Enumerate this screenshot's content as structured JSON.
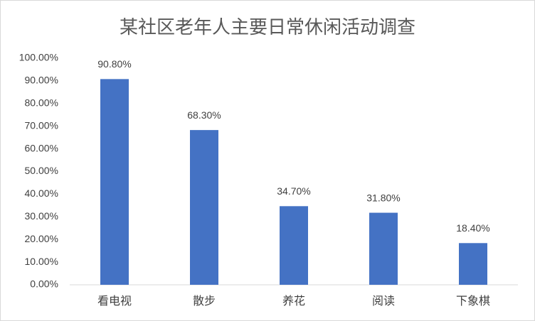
{
  "chart_data": {
    "type": "bar",
    "title": "某社区老年人主要日常休闲活动调查",
    "categories": [
      "看电视",
      "散步",
      "养花",
      "阅读",
      "下象棋"
    ],
    "values": [
      90.8,
      68.3,
      34.7,
      31.8,
      18.4
    ],
    "value_labels": [
      "90.80%",
      "68.30%",
      "34.70%",
      "31.80%",
      "18.40%"
    ],
    "color": "#4472c4",
    "ylim": [
      0,
      100
    ],
    "yticks": [
      {
        "value": 0,
        "label": "0.00%"
      },
      {
        "value": 10,
        "label": "10.00%"
      },
      {
        "value": 20,
        "label": "20.00%"
      },
      {
        "value": 30,
        "label": "30.00%"
      },
      {
        "value": 40,
        "label": "40.00%"
      },
      {
        "value": 50,
        "label": "50.00%"
      },
      {
        "value": 60,
        "label": "60.00%"
      },
      {
        "value": 70,
        "label": "70.00%"
      },
      {
        "value": 80,
        "label": "80.00%"
      },
      {
        "value": 90,
        "label": "90.00%"
      },
      {
        "value": 100,
        "label": "100.00%"
      }
    ],
    "grid": false
  }
}
